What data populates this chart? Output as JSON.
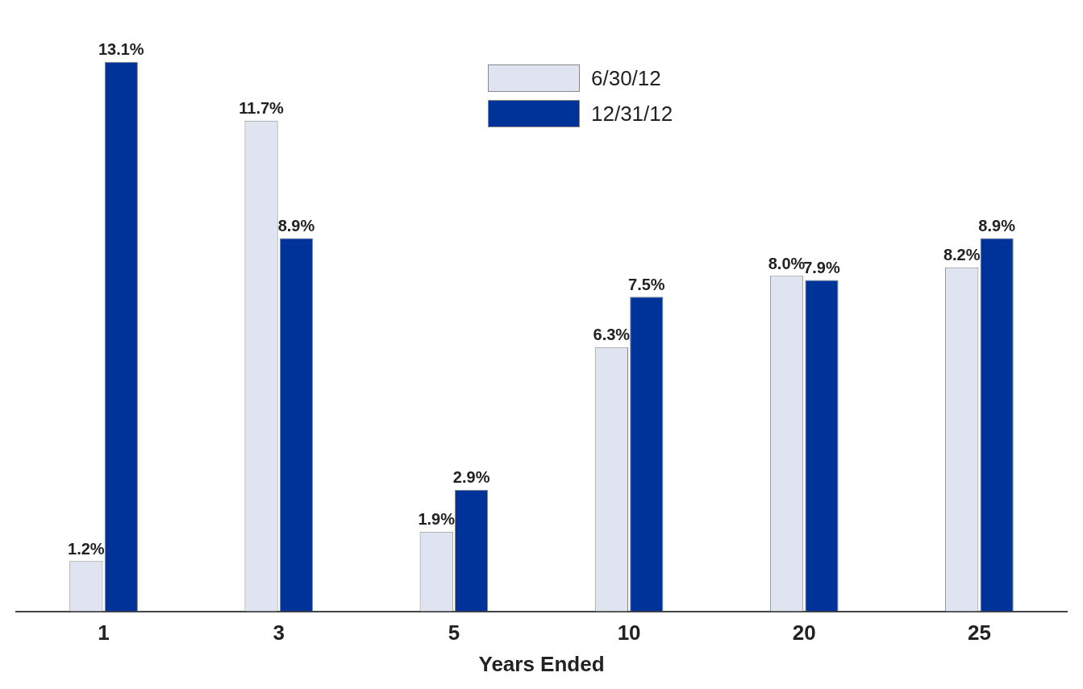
{
  "chart_data": {
    "type": "bar",
    "xlabel": "Years Ended",
    "categories": [
      "1",
      "3",
      "5",
      "10",
      "20",
      "25"
    ],
    "series": [
      {
        "name": "6/30/12",
        "color": "#dfe4f0",
        "values": [
          1.2,
          11.7,
          1.9,
          6.3,
          8.0,
          8.2
        ],
        "value_labels": [
          "1.2%",
          "11.7%",
          "1.9%",
          "6.3%",
          "8.0%",
          "8.2%"
        ]
      },
      {
        "name": "12/31/12",
        "color": "#003399",
        "values": [
          13.1,
          8.9,
          2.9,
          7.5,
          7.9,
          8.9
        ],
        "value_labels": [
          "13.1%",
          "8.9%",
          "2.9%",
          "7.5%",
          "7.9%",
          "8.9%"
        ]
      }
    ],
    "legend": "top",
    "grid": false
  }
}
